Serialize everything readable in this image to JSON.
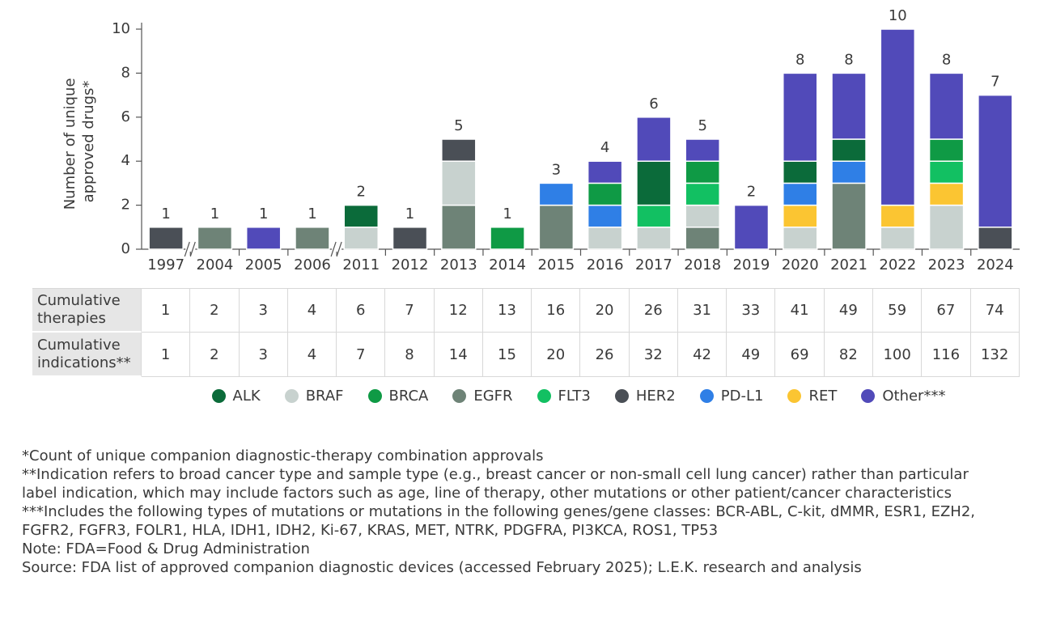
{
  "chart_data": {
    "type": "stacked_bar",
    "y_label": [
      "Number of unique",
      "approved drugs*"
    ],
    "categories": [
      "1997",
      "2004",
      "2005",
      "2006",
      "2011",
      "2012",
      "2013",
      "2014",
      "2015",
      "2016",
      "2017",
      "2018",
      "2019",
      "2020",
      "2021",
      "2022",
      "2023",
      "2024"
    ],
    "series": [
      {
        "name": "ALK",
        "color": "#0b6b3a",
        "values": [
          0,
          0,
          0,
          0,
          1,
          0,
          0,
          0,
          0,
          0,
          2,
          0,
          0,
          1,
          1,
          0,
          0,
          0
        ]
      },
      {
        "name": "BRAF",
        "color": "#c8d2cf",
        "values": [
          0,
          0,
          0,
          0,
          1,
          0,
          2,
          0,
          0,
          1,
          1,
          1,
          0,
          1,
          0,
          1,
          2,
          0
        ]
      },
      {
        "name": "BRCA",
        "color": "#0f9a45",
        "values": [
          0,
          0,
          0,
          0,
          0,
          0,
          0,
          1,
          0,
          1,
          0,
          1,
          0,
          0,
          0,
          0,
          1,
          0
        ]
      },
      {
        "name": "EGFR",
        "color": "#6e8377",
        "values": [
          0,
          1,
          0,
          1,
          0,
          0,
          2,
          0,
          2,
          0,
          0,
          1,
          0,
          0,
          3,
          0,
          0,
          0
        ]
      },
      {
        "name": "FLT3",
        "color": "#12c062",
        "values": [
          0,
          0,
          0,
          0,
          0,
          0,
          0,
          0,
          0,
          0,
          1,
          1,
          0,
          0,
          0,
          0,
          1,
          0
        ]
      },
      {
        "name": "HER2",
        "color": "#4a4f56",
        "values": [
          1,
          0,
          0,
          0,
          0,
          1,
          1,
          0,
          0,
          0,
          0,
          0,
          0,
          0,
          0,
          0,
          0,
          1
        ]
      },
      {
        "name": "PD-L1",
        "color": "#2f7fe6",
        "values": [
          0,
          0,
          0,
          0,
          0,
          0,
          0,
          0,
          1,
          1,
          0,
          0,
          0,
          1,
          1,
          0,
          0,
          0
        ]
      },
      {
        "name": "RET",
        "color": "#fbc532",
        "values": [
          0,
          0,
          0,
          0,
          0,
          0,
          0,
          0,
          0,
          0,
          0,
          0,
          0,
          1,
          0,
          1,
          1,
          0
        ]
      },
      {
        "name": "Other***",
        "color": "#514ab9",
        "values": [
          0,
          0,
          1,
          0,
          0,
          0,
          0,
          0,
          0,
          1,
          2,
          1,
          2,
          4,
          3,
          8,
          3,
          6
        ]
      }
    ],
    "totals": [
      1,
      1,
      1,
      1,
      2,
      1,
      5,
      1,
      3,
      4,
      6,
      5,
      2,
      8,
      8,
      10,
      8,
      7
    ],
    "ylim": [
      0,
      10
    ],
    "yticks": [
      0,
      2,
      4,
      6,
      8,
      10
    ],
    "grid": false,
    "table": {
      "rows": [
        {
          "label": "Cumulative therapies",
          "values": [
            1,
            2,
            3,
            4,
            6,
            7,
            12,
            13,
            16,
            20,
            26,
            31,
            33,
            41,
            49,
            59,
            67,
            74
          ]
        },
        {
          "label": "Cumulative indications**",
          "values": [
            1,
            2,
            3,
            4,
            7,
            8,
            14,
            15,
            20,
            26,
            32,
            42,
            49,
            69,
            82,
            100,
            116,
            132
          ]
        }
      ]
    },
    "footnotes": [
      "*Count of unique companion diagnostic-therapy combination approvals",
      "**Indication refers to broad cancer type and sample type (e.g., breast cancer or non-small cell lung cancer) rather than particular label indication, which may include factors such as age, line of therapy, other mutations or other patient/cancer characteristics",
      "***Includes the following types of mutations or mutations in the following genes/gene classes: BCR-ABL, C-kit, dMMR, ESR1, EZH2, FGFR2, FGFR3, FOLR1, HLA, IDH1, IDH2, Ki-67, KRAS, MET, NTRK, PDGFRA, PI3KCA, ROS1, TP53",
      "Note: FDA=Food & Drug Administration",
      "Source: FDA list of approved companion diagnostic devices (accessed February 2025); L.E.K. research and analysis"
    ]
  }
}
